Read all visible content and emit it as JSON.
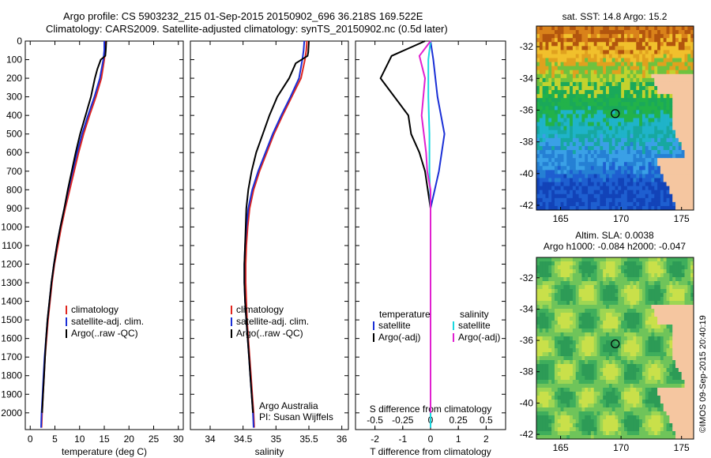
{
  "header": {
    "line1": "Argo profile: CS 5903232_215 01-Sep-2015 20150902_696 36.218S 169.522E",
    "line2": "Climatology: CARS2009. Satellite-adjusted climatology: synTS_20150902.nc (0.5d later)"
  },
  "colors": {
    "climatology": "#e0261f",
    "satellite": "#1a2fd6",
    "argo": "#000000",
    "satellite_salinity": "#19d8e0",
    "argo_salinity": "#e020d0"
  },
  "chart_data": [
    {
      "type": "line",
      "name": "temperature-profile",
      "xlabel": "temperature (deg C)",
      "ylabel": "",
      "xlim": [
        -1,
        31
      ],
      "ylim": [
        2090,
        0
      ],
      "xticks": [
        "0",
        "5",
        "10",
        "15",
        "20",
        "25",
        "30"
      ],
      "xtick_values": [
        0,
        5,
        10,
        15,
        20,
        25,
        30
      ],
      "yticks": [
        "0",
        "100",
        "200",
        "300",
        "400",
        "500",
        "600",
        "700",
        "800",
        "900",
        "1000",
        "1100",
        "1200",
        "1300",
        "1400",
        "1500",
        "1600",
        "1700",
        "1800",
        "1900",
        "2000"
      ],
      "ytick_values": [
        0,
        100,
        200,
        300,
        400,
        500,
        600,
        700,
        800,
        900,
        1000,
        1100,
        1200,
        1300,
        1400,
        1500,
        1600,
        1700,
        1800,
        1900,
        2000
      ],
      "legend": [
        "climatology",
        "satellite-adj. clim.",
        "Argo(..raw -QC)"
      ],
      "legend_position": "lower-right",
      "series": [
        {
          "name": "climatology",
          "color_key": "climatology",
          "points": [
            [
              15.2,
              0
            ],
            [
              15.2,
              50
            ],
            [
              15.0,
              100
            ],
            [
              14.4,
              200
            ],
            [
              13.3,
              300
            ],
            [
              12.0,
              400
            ],
            [
              10.8,
              500
            ],
            [
              9.8,
              600
            ],
            [
              8.9,
              700
            ],
            [
              8.0,
              800
            ],
            [
              7.1,
              900
            ],
            [
              6.3,
              1000
            ],
            [
              5.6,
              1100
            ],
            [
              4.9,
              1200
            ],
            [
              4.4,
              1300
            ],
            [
              4.0,
              1400
            ],
            [
              3.6,
              1500
            ],
            [
              3.3,
              1600
            ],
            [
              3.0,
              1700
            ],
            [
              2.8,
              1800
            ],
            [
              2.6,
              1900
            ],
            [
              2.4,
              2000
            ],
            [
              2.3,
              2080
            ]
          ]
        },
        {
          "name": "satellite-adj. clim.",
          "color_key": "satellite",
          "points": [
            [
              15.0,
              0
            ],
            [
              15.0,
              50
            ],
            [
              14.8,
              100
            ],
            [
              14.1,
              200
            ],
            [
              13.0,
              300
            ],
            [
              11.7,
              400
            ],
            [
              10.5,
              500
            ],
            [
              9.5,
              600
            ],
            [
              8.6,
              700
            ],
            [
              7.7,
              800
            ],
            [
              6.9,
              900
            ],
            [
              6.1,
              1000
            ],
            [
              5.4,
              1100
            ],
            [
              4.8,
              1200
            ],
            [
              4.3,
              1300
            ],
            [
              3.9,
              1400
            ],
            [
              3.5,
              1500
            ],
            [
              3.2,
              1600
            ],
            [
              2.9,
              1700
            ],
            [
              2.7,
              1800
            ],
            [
              2.5,
              1900
            ],
            [
              2.3,
              2000
            ],
            [
              2.2,
              2080
            ]
          ]
        },
        {
          "name": "Argo(..raw -QC)",
          "color_key": "argo",
          "points": [
            [
              15.4,
              0
            ],
            [
              15.3,
              50
            ],
            [
              15.2,
              80
            ],
            [
              14.3,
              100
            ],
            [
              13.6,
              150
            ],
            [
              13.1,
              200
            ],
            [
              12.3,
              300
            ],
            [
              11.2,
              400
            ],
            [
              10.1,
              500
            ],
            [
              9.2,
              600
            ],
            [
              8.4,
              700
            ],
            [
              7.6,
              800
            ],
            [
              6.9,
              900
            ],
            [
              6.1,
              1000
            ],
            [
              5.4,
              1100
            ],
            [
              4.8,
              1200
            ],
            [
              4.3,
              1300
            ],
            [
              3.9,
              1400
            ],
            [
              3.5,
              1500
            ],
            [
              3.2,
              1600
            ],
            [
              3.0,
              1700
            ],
            [
              2.8,
              1800
            ],
            [
              2.6,
              1900
            ],
            [
              2.4,
              2000
            ]
          ]
        }
      ]
    },
    {
      "type": "line",
      "name": "salinity-profile",
      "xlabel": "salinity",
      "ylabel": "",
      "xlim": [
        33.7,
        36.1
      ],
      "ylim": [
        2090,
        0
      ],
      "xticks": [
        "34",
        "34.5",
        "35",
        "35.5",
        "36"
      ],
      "xtick_values": [
        34,
        34.5,
        35,
        35.5,
        36
      ],
      "legend": [
        "climatology",
        "satellite-adj. clim.",
        "Argo(..raw -QC)"
      ],
      "legend_position": "lower-right",
      "annotations": [
        "Argo Australia",
        "PI: Susan Wijffels"
      ],
      "series": [
        {
          "name": "climatology",
          "color_key": "climatology",
          "points": [
            [
              35.47,
              0
            ],
            [
              35.46,
              50
            ],
            [
              35.44,
              100
            ],
            [
              35.38,
              200
            ],
            [
              35.24,
              300
            ],
            [
              35.1,
              400
            ],
            [
              34.97,
              500
            ],
            [
              34.86,
              600
            ],
            [
              34.75,
              700
            ],
            [
              34.66,
              800
            ],
            [
              34.6,
              900
            ],
            [
              34.57,
              1000
            ],
            [
              34.55,
              1100
            ],
            [
              34.54,
              1200
            ],
            [
              34.54,
              1300
            ],
            [
              34.55,
              1400
            ],
            [
              34.56,
              1500
            ],
            [
              34.58,
              1600
            ],
            [
              34.6,
              1700
            ],
            [
              34.62,
              1800
            ],
            [
              34.64,
              1900
            ],
            [
              34.66,
              2000
            ],
            [
              34.67,
              2080
            ]
          ]
        },
        {
          "name": "satellite-adj. clim.",
          "color_key": "satellite",
          "points": [
            [
              35.43,
              0
            ],
            [
              35.42,
              50
            ],
            [
              35.4,
              100
            ],
            [
              35.35,
              200
            ],
            [
              35.22,
              300
            ],
            [
              35.08,
              400
            ],
            [
              34.95,
              500
            ],
            [
              34.84,
              600
            ],
            [
              34.73,
              700
            ],
            [
              34.64,
              800
            ],
            [
              34.58,
              900
            ],
            [
              34.55,
              1000
            ],
            [
              34.53,
              1100
            ],
            [
              34.52,
              1200
            ],
            [
              34.52,
              1300
            ],
            [
              34.53,
              1400
            ],
            [
              34.55,
              1500
            ],
            [
              34.57,
              1600
            ],
            [
              34.59,
              1700
            ],
            [
              34.61,
              1800
            ],
            [
              34.63,
              1900
            ],
            [
              34.65,
              2000
            ],
            [
              34.66,
              2080
            ]
          ]
        },
        {
          "name": "Argo(..raw -QC)",
          "color_key": "argo",
          "points": [
            [
              35.5,
              0
            ],
            [
              35.49,
              60
            ],
            [
              35.48,
              80
            ],
            [
              35.3,
              120
            ],
            [
              35.2,
              200
            ],
            [
              35.02,
              300
            ],
            [
              34.9,
              400
            ],
            [
              34.8,
              500
            ],
            [
              34.7,
              600
            ],
            [
              34.63,
              700
            ],
            [
              34.58,
              800
            ],
            [
              34.55,
              900
            ],
            [
              34.54,
              1000
            ],
            [
              34.53,
              1100
            ],
            [
              34.52,
              1200
            ],
            [
              34.52,
              1300
            ],
            [
              34.53,
              1400
            ],
            [
              34.55,
              1500
            ],
            [
              34.57,
              1600
            ],
            [
              34.59,
              1700
            ],
            [
              34.61,
              1800
            ],
            [
              34.63,
              1900
            ],
            [
              34.65,
              2000
            ]
          ]
        }
      ]
    },
    {
      "type": "line",
      "name": "difference-profile",
      "xlabel": "T difference from climatology",
      "x2label": "S difference from climatology",
      "xlim": [
        -2.7,
        2.7
      ],
      "ylim": [
        2090,
        0
      ],
      "xticks": [
        "-2",
        "-1",
        "0",
        "1",
        "2"
      ],
      "xtick_values": [
        -2,
        -1,
        0,
        1,
        2
      ],
      "x2ticks": [
        "-0.5",
        "-0.25",
        "0",
        "0.25",
        "0.5"
      ],
      "x2tick_values": [
        -0.5,
        -0.25,
        0,
        0.25,
        0.5
      ],
      "legend_headers": [
        "temperature",
        "salinity"
      ],
      "legend": [
        "satellite",
        "Argo(-adj)",
        "satellite",
        "Argo(-adj)"
      ],
      "series": [
        {
          "name": "satellite",
          "group": "temperature",
          "color_key": "satellite",
          "points": [
            [
              0.0,
              0
            ],
            [
              0.1,
              100
            ],
            [
              0.25,
              300
            ],
            [
              0.5,
              500
            ],
            [
              0.3,
              700
            ],
            [
              0.0,
              900
            ],
            [
              0.0,
              1200
            ],
            [
              0.0,
              1500
            ],
            [
              0.0,
              1800
            ],
            [
              0.0,
              2080
            ]
          ]
        },
        {
          "name": "Argo(-adj)",
          "group": "temperature",
          "color_key": "argo",
          "points": [
            [
              -0.2,
              0
            ],
            [
              -1.4,
              80
            ],
            [
              -1.8,
              200
            ],
            [
              -1.3,
              300
            ],
            [
              -0.8,
              400
            ],
            [
              -0.7,
              500
            ],
            [
              -0.4,
              600
            ],
            [
              -0.2,
              700
            ],
            [
              -0.1,
              800
            ],
            [
              0.0,
              900
            ],
            [
              0.0,
              1200
            ],
            [
              0.0,
              1500
            ],
            [
              0.0,
              1800
            ],
            [
              0.0,
              2000
            ]
          ]
        },
        {
          "name": "satellite",
          "group": "salinity",
          "color_key": "satellite_salinity",
          "points": [
            [
              0.0,
              0
            ],
            [
              -0.02,
              100
            ],
            [
              -0.02,
              300
            ],
            [
              -0.01,
              500
            ],
            [
              -0.01,
              700
            ],
            [
              0.0,
              900
            ],
            [
              0.0,
              1200
            ],
            [
              0.0,
              1500
            ],
            [
              0.0,
              1800
            ],
            [
              0.0,
              2080
            ]
          ]
        },
        {
          "name": "Argo(-adj)",
          "group": "salinity",
          "color_key": "argo_salinity",
          "points": [
            [
              0.0,
              0
            ],
            [
              -0.1,
              80
            ],
            [
              -0.05,
              200
            ],
            [
              -0.08,
              400
            ],
            [
              -0.04,
              600
            ],
            [
              -0.03,
              700
            ],
            [
              0.0,
              800
            ],
            [
              0.0,
              1200
            ],
            [
              0.0,
              1500
            ],
            [
              0.0,
              1800
            ],
            [
              0.0,
              2000
            ]
          ]
        }
      ]
    },
    {
      "type": "heatmap",
      "name": "sst-map",
      "title": "sat. SST: 14.8 Argo: 15.2",
      "xlim": [
        163,
        176
      ],
      "ylim": [
        -42.3,
        -30.7
      ],
      "xticks": [
        "165",
        "170",
        "175"
      ],
      "xtick_values": [
        165,
        170,
        175
      ],
      "yticks": [
        "-32",
        "-34",
        "-36",
        "-38",
        "-40",
        "-42"
      ],
      "ytick_values": [
        -32,
        -34,
        -36,
        -38,
        -40,
        -42
      ],
      "marker": {
        "lon": 169.52,
        "lat": -36.22
      }
    },
    {
      "type": "heatmap",
      "name": "sla-map",
      "title": "Altim. SLA: 0.0038",
      "subtitle": "Argo h1000: -0.084 h2000: -0.047",
      "xlim": [
        163,
        176
      ],
      "ylim": [
        -42.3,
        -30.7
      ],
      "xticks": [
        "165",
        "170",
        "175"
      ],
      "xtick_values": [
        165,
        170,
        175
      ],
      "yticks": [
        "-32",
        "-34",
        "-36",
        "-38",
        "-40",
        "-42"
      ],
      "ytick_values": [
        -32,
        -34,
        -36,
        -38,
        -40,
        -42
      ],
      "marker": {
        "lon": 169.52,
        "lat": -36.22
      }
    }
  ],
  "watermark": "©IMOS 09-Sep-2015 20:40:19"
}
